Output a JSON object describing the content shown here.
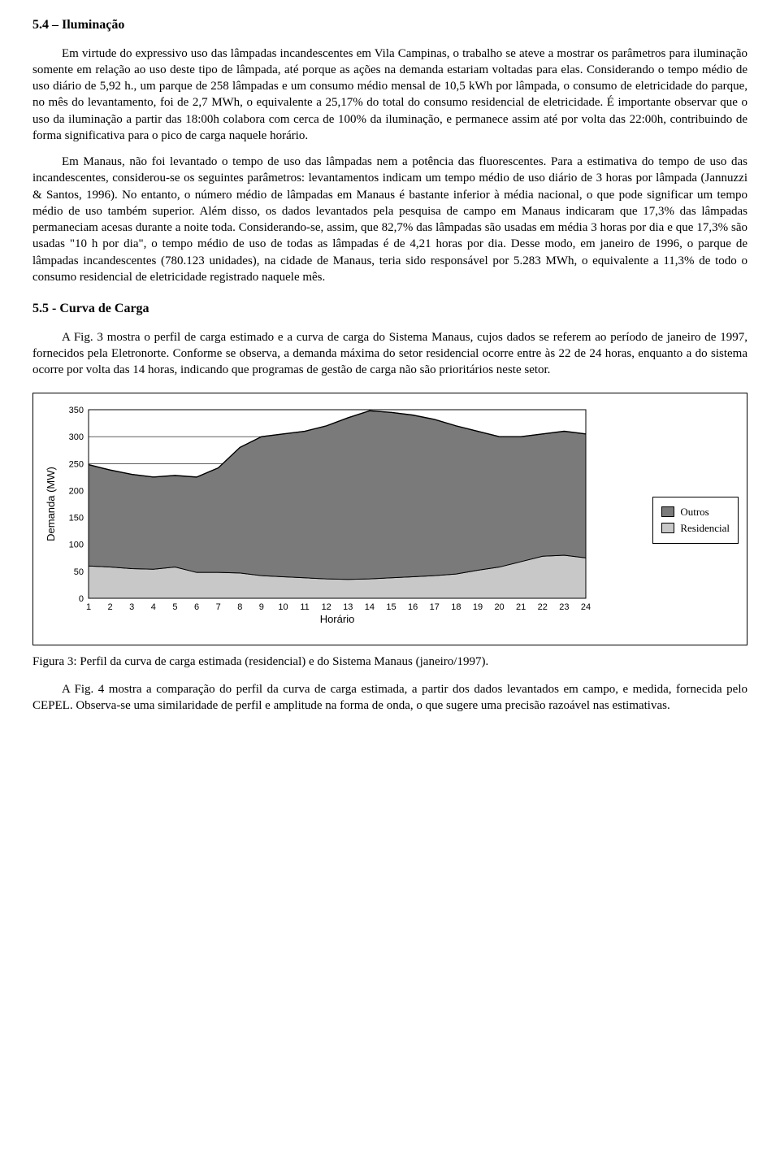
{
  "sec54": {
    "title": "5.4 – Iluminação",
    "p1": "Em virtude do expressivo uso das lâmpadas incandescentes em Vila Campinas, o trabalho se ateve a mostrar os parâmetros para iluminação somente em relação ao uso deste tipo de lâmpada, até porque as ações na demanda estariam voltadas para elas. Considerando o tempo médio de uso diário de 5,92 h., um parque de 258 lâmpadas e um consumo médio mensal de 10,5 kWh por lâmpada, o consumo de eletricidade do parque, no mês do levantamento, foi de 2,7 MWh, o equivalente a 25,17% do total do consumo residencial de eletricidade. É importante observar que o uso da iluminação a partir das 18:00h colabora com cerca de 100% da iluminação, e permanece assim até por volta das 22:00h, contribuindo de forma significativa para o pico de carga naquele horário.",
    "p2": "Em Manaus, não foi levantado o tempo de uso das lâmpadas nem a potência das fluorescentes. Para a estimativa do tempo de uso das incandescentes, considerou-se os seguintes parâmetros: levantamentos indicam um tempo médio de uso diário de 3 horas por lâmpada (Jannuzzi & Santos, 1996). No entanto, o número médio de lâmpadas em Manaus é bastante inferior à média nacional, o que pode significar um tempo médio de uso também superior. Além disso, os dados levantados pela pesquisa de campo em Manaus indicaram que 17,3% das lâmpadas permaneciam acesas durante a noite toda. Considerando-se, assim, que 82,7% das lâmpadas são usadas em média 3 horas por dia e que 17,3% são usadas \"10 h por dia\", o tempo médio de uso de todas as lâmpadas é de 4,21 horas por dia. Desse modo, em janeiro de 1996, o parque de lâmpadas incandescentes (780.123 unidades), na cidade de Manaus, teria sido responsável por 5.283 MWh, o equivalente a 11,3% de todo o consumo residencial de eletricidade registrado naquele mês."
  },
  "sec55": {
    "title": "5.5 -  Curva de Carga",
    "p1": "A Fig. 3 mostra o perfil de carga estimado e a curva de carga do Sistema Manaus, cujos dados se referem ao período de janeiro de 1997, fornecidos pela Eletronorte. Conforme se observa, a demanda máxima do setor residencial ocorre entre às 22 de 24 horas, enquanto a do sistema ocorre por volta das 14 horas, indicando que programas de gestão de carga não são prioritários neste setor."
  },
  "chart": {
    "type": "stacked-area",
    "ylabel": "Demanda (MW)",
    "xlabel": "Horário",
    "yticks": [
      0,
      50,
      100,
      150,
      200,
      250,
      300,
      350
    ],
    "ylim": [
      0,
      350
    ],
    "xticks": [
      1,
      2,
      3,
      4,
      5,
      6,
      7,
      8,
      9,
      10,
      11,
      12,
      13,
      14,
      15,
      16,
      17,
      18,
      19,
      20,
      21,
      22,
      23,
      24
    ],
    "hours": [
      1,
      2,
      3,
      4,
      5,
      6,
      7,
      8,
      9,
      10,
      11,
      12,
      13,
      14,
      15,
      16,
      17,
      18,
      19,
      20,
      21,
      22,
      23,
      24
    ],
    "residencial": [
      60,
      58,
      55,
      54,
      58,
      48,
      48,
      47,
      42,
      40,
      38,
      36,
      35,
      36,
      38,
      40,
      42,
      45,
      52,
      58,
      68,
      78,
      80,
      75
    ],
    "total": [
      248,
      238,
      230,
      225,
      228,
      225,
      242,
      280,
      300,
      305,
      310,
      320,
      335,
      348,
      345,
      340,
      332,
      320,
      310,
      300,
      300,
      305,
      310,
      305
    ],
    "colors": {
      "residencial": "#c8c8c8",
      "outros": "#7a7a7a",
      "grid": "#000000",
      "bg": "#ffffff",
      "line": "#000000"
    },
    "legend": {
      "outros": "Outros",
      "residencial": "Residencial"
    },
    "tick_fontsize": 11,
    "label_fontsize": 13
  },
  "fig3_caption": "Figura 3: Perfil da curva de carga estimada (residencial) e do  Sistema Manaus (janeiro/1997).",
  "p_after": "A Fig. 4 mostra a comparação do perfil da curva de carga estimada, a partir dos dados levantados em campo, e medida, fornecida pelo CEPEL. Observa-se uma similaridade de perfil e amplitude na forma de onda, o que sugere uma precisão razoável nas estimativas."
}
